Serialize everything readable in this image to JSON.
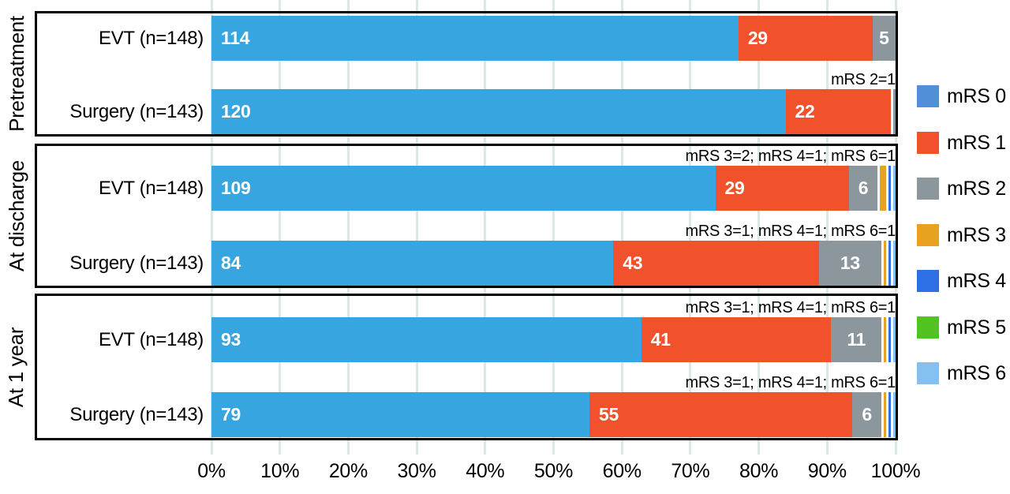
{
  "chart_data": {
    "type": "bar",
    "variant": "horizontal-stacked-percent",
    "title": "",
    "xlabel": "",
    "ylabel": "",
    "x_axis": {
      "range_percent": [
        0,
        100
      ],
      "ticks": [
        "0%",
        "10%",
        "20%",
        "30%",
        "40%",
        "50%",
        "60%",
        "70%",
        "80%",
        "90%",
        "100%"
      ],
      "grid": true
    },
    "bar_colors": {
      "mrs0": "#37a6e0",
      "mrs1": "#f1522b",
      "mrs2": "#8b969d",
      "mrs3": "#e9a220",
      "mrs4": "#2f6fe6",
      "mrs5": "#52c122",
      "mrs6": "#85c0f2"
    },
    "legend": {
      "position": "right",
      "items": [
        {
          "label": "mRS 0",
          "color": "#5190d8"
        },
        {
          "label": "mRS 1",
          "color": "#f1522b"
        },
        {
          "label": "mRS 2",
          "color": "#8b969d"
        },
        {
          "label": "mRS 3",
          "color": "#e9a220"
        },
        {
          "label": "mRS 4",
          "color": "#2f6fe6"
        },
        {
          "label": "mRS 5",
          "color": "#52c122"
        },
        {
          "label": "mRS 6",
          "color": "#85c0f2"
        }
      ]
    },
    "panels": [
      {
        "group": "Pretreatment",
        "rows": [
          {
            "label": "EVT (n=148)",
            "total": 148,
            "annotation": "",
            "segments": [
              {
                "mrs": 0,
                "value": 114
              },
              {
                "mrs": 1,
                "value": 29
              },
              {
                "mrs": 2,
                "value": 5
              }
            ]
          },
          {
            "label": "Surgery (n=143)",
            "total": 143,
            "annotation": "mRS 2=1",
            "segments": [
              {
                "mrs": 0,
                "value": 120
              },
              {
                "mrs": 1,
                "value": 22
              },
              {
                "mrs": 2,
                "value": 1
              }
            ]
          }
        ]
      },
      {
        "group": "At discharge",
        "rows": [
          {
            "label": "EVT (n=148)",
            "total": 148,
            "annotation": "mRS 3=2; mRS 4=1; mRS 6=1",
            "segments": [
              {
                "mrs": 0,
                "value": 109
              },
              {
                "mrs": 1,
                "value": 29
              },
              {
                "mrs": 2,
                "value": 6
              },
              {
                "mrs": 3,
                "value": 2
              },
              {
                "mrs": 4,
                "value": 1
              },
              {
                "mrs": 6,
                "value": 1
              }
            ]
          },
          {
            "label": "Surgery (n=143)",
            "total": 143,
            "annotation": "mRS 3=1; mRS 4=1; mRS 6=1",
            "segments": [
              {
                "mrs": 0,
                "value": 84
              },
              {
                "mrs": 1,
                "value": 43
              },
              {
                "mrs": 2,
                "value": 13
              },
              {
                "mrs": 3,
                "value": 1
              },
              {
                "mrs": 4,
                "value": 1
              },
              {
                "mrs": 6,
                "value": 1
              }
            ]
          }
        ]
      },
      {
        "group": "At 1 year",
        "rows": [
          {
            "label": "EVT (n=148)",
            "total": 148,
            "annotation": "mRS 3=1; mRS 4=1; mRS 6=1",
            "segments": [
              {
                "mrs": 0,
                "value": 93
              },
              {
                "mrs": 1,
                "value": 41
              },
              {
                "mrs": 2,
                "value": 11
              },
              {
                "mrs": 3,
                "value": 1
              },
              {
                "mrs": 4,
                "value": 1
              },
              {
                "mrs": 6,
                "value": 1
              }
            ]
          },
          {
            "label": "Surgery (n=143)",
            "total": 143,
            "annotation": "mRS 3=1; mRS 4=1; mRS 6=1",
            "segments": [
              {
                "mrs": 0,
                "value": 79
              },
              {
                "mrs": 1,
                "value": 55
              },
              {
                "mrs": 2,
                "value": 6
              },
              {
                "mrs": 3,
                "value": 1
              },
              {
                "mrs": 4,
                "value": 1
              },
              {
                "mrs": 6,
                "value": 1
              }
            ]
          }
        ]
      }
    ],
    "label_rules": {
      "show_value_label_min": 5,
      "centered_label_mrs": 2
    }
  }
}
